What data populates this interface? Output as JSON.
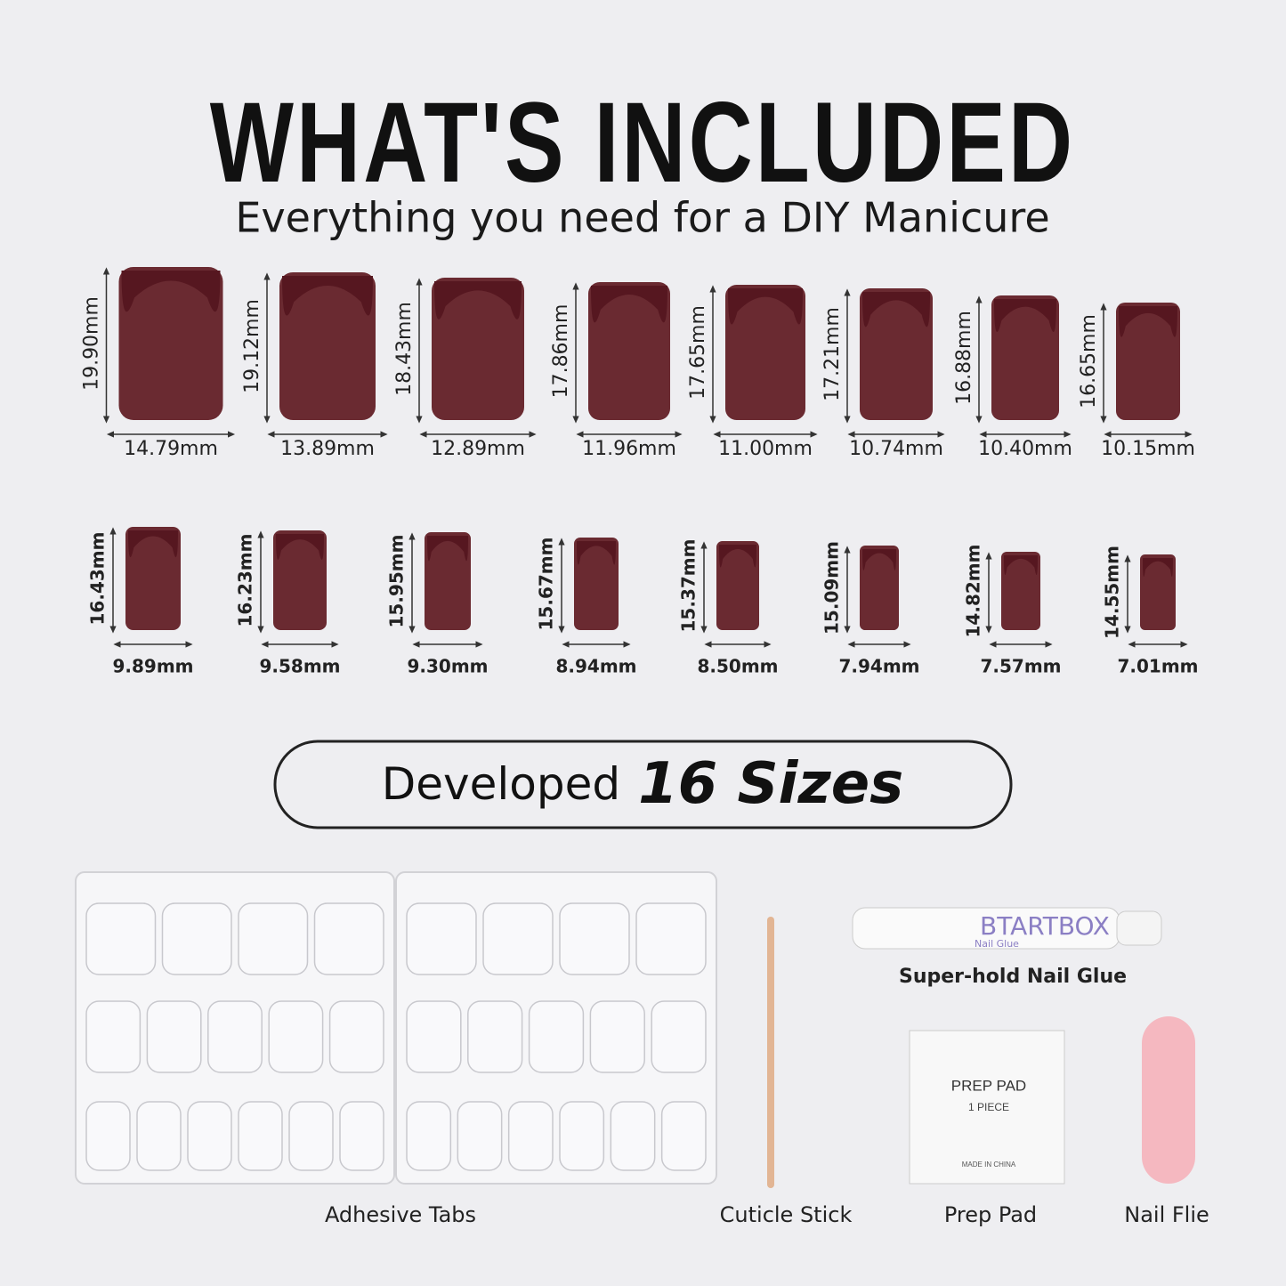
{
  "header": {
    "title": "WHAT'S INCLUDED",
    "subtitle": "Everything you need for a DIY Manicure"
  },
  "nails": [
    {
      "height": "19.90mm",
      "width": "14.79mm"
    },
    {
      "height": "19.12mm",
      "width": "13.89mm"
    },
    {
      "height": "18.43mm",
      "width": "12.89mm"
    },
    {
      "height": "17.86mm",
      "width": "11.96mm"
    },
    {
      "height": "17.65mm",
      "width": "11.00mm"
    },
    {
      "height": "17.21mm",
      "width": "10.74mm"
    },
    {
      "height": "16.88mm",
      "width": "10.40mm"
    },
    {
      "height": "16.65mm",
      "width": "10.15mm"
    },
    {
      "height": "16.43mm",
      "width": "9.89mm"
    },
    {
      "height": "16.23mm",
      "width": "9.58mm"
    },
    {
      "height": "15.95mm",
      "width": "9.30mm"
    },
    {
      "height": "15.67mm",
      "width": "8.94mm"
    },
    {
      "height": "15.37mm",
      "width": "8.50mm"
    },
    {
      "height": "15.09mm",
      "width": "7.94mm"
    },
    {
      "height": "14.82mm",
      "width": "7.57mm"
    },
    {
      "height": "14.55mm",
      "width": "7.01mm"
    }
  ],
  "banner": {
    "prefix": "Developed",
    "highlight": "16 Sizes"
  },
  "items": {
    "adhesive_tabs": "Adhesive Tabs",
    "cuticle_stick": "Cuticle Stick",
    "glue": {
      "label": "Super-hold Nail Glue",
      "brand": "BTARTBOX",
      "product": "Nail Glue"
    },
    "prep_pad": {
      "label": "Prep Pad",
      "title": "PREP PAD",
      "count": "1 PIECE",
      "origin": "MADE IN CHINA"
    },
    "nail_file": "Nail Flie"
  }
}
